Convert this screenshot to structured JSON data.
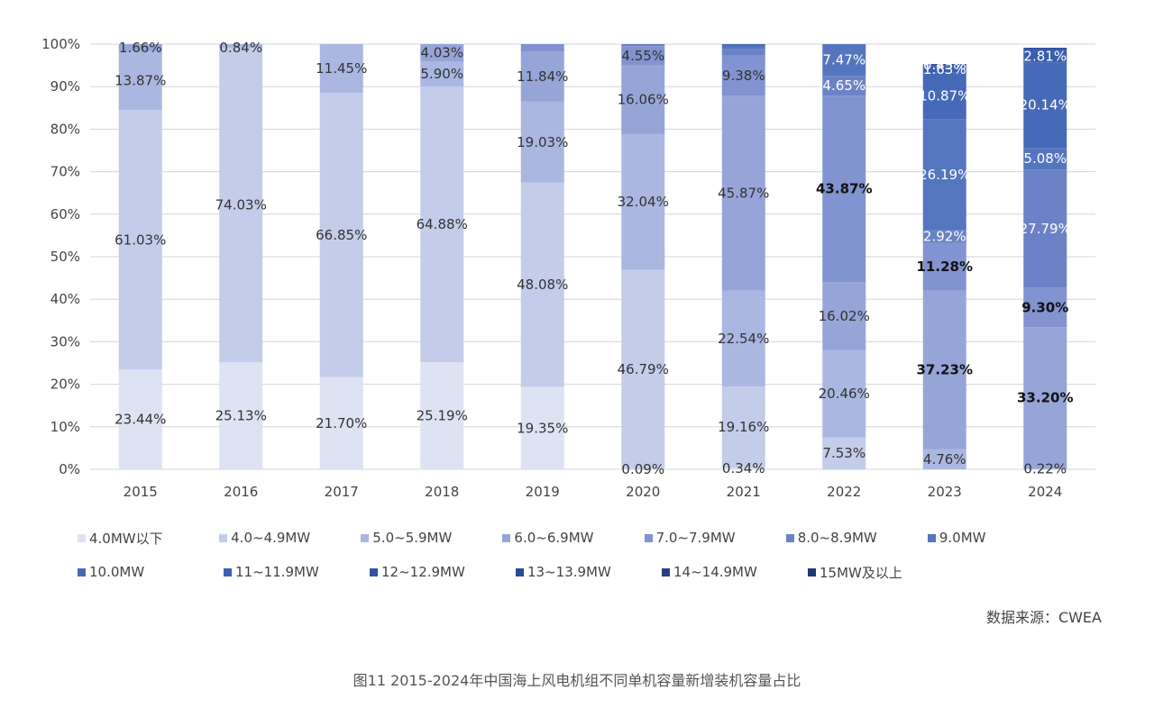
{
  "chart_data": {
    "type": "bar",
    "stacked": true,
    "categories": [
      "2015",
      "2016",
      "2017",
      "2018",
      "2019",
      "2020",
      "2021",
      "2022",
      "2023",
      "2024"
    ],
    "ylim": [
      0,
      100
    ],
    "yticks": [
      "0%",
      "10%",
      "20%",
      "30%",
      "40%",
      "50%",
      "60%",
      "70%",
      "80%",
      "90%",
      "100%"
    ],
    "grid": true,
    "legend_position": "bottom",
    "series": [
      {
        "name": "4.0MW以下",
        "color": "#dde3f3",
        "values": [
          23.44,
          25.13,
          21.7,
          25.19,
          19.35,
          0.09,
          0.34,
          0,
          0,
          0
        ],
        "labels": [
          "23.44%",
          "25.13%",
          "21.70%",
          "25.19%",
          "19.35%",
          "0.09%",
          "0.34%",
          "",
          "",
          ""
        ]
      },
      {
        "name": "4.0~4.9MW",
        "color": "#c3cdea",
        "values": [
          61.03,
          74.03,
          66.85,
          64.88,
          48.08,
          46.79,
          19.16,
          7.53,
          0,
          0
        ],
        "labels": [
          "61.03%",
          "74.03%",
          "66.85%",
          "64.88%",
          "48.08%",
          "46.79%",
          "19.16%",
          "7.53%",
          "",
          ""
        ]
      },
      {
        "name": "5.0~5.9MW",
        "color": "#aab7e0",
        "values": [
          13.87,
          0.84,
          11.45,
          5.9,
          19.03,
          32.04,
          22.54,
          20.46,
          4.76,
          0.22
        ],
        "labels": [
          "13.87%",
          "0.84%",
          "11.45%",
          "5.90%",
          "19.03%",
          "32.04%",
          "22.54%",
          "20.46%",
          "4.76%",
          "0.22%"
        ]
      },
      {
        "name": "6.0~6.9MW",
        "color": "#95a5d8",
        "values": [
          1.66,
          0,
          0,
          4.03,
          11.84,
          16.06,
          45.87,
          16.02,
          37.23,
          33.2
        ],
        "labels": [
          "1.66%",
          "",
          "",
          "4.03%",
          "11.84%",
          "16.06%",
          "45.87%",
          "16.02%",
          "37.23%",
          "33.20%"
        ]
      },
      {
        "name": "7.0~7.9MW",
        "color": "#8193d0",
        "values": [
          0,
          0,
          0,
          0,
          1.7,
          4.55,
          9.38,
          43.87,
          11.28,
          9.3
        ],
        "labels": [
          "",
          "",
          "",
          "",
          "",
          "4.55%",
          "9.38%",
          "43.87%",
          "11.28%",
          "9.30%"
        ]
      },
      {
        "name": "8.0~8.9MW",
        "color": "#6b83c6",
        "values": [
          0,
          0,
          0,
          0,
          0,
          0.47,
          1.5,
          4.65,
          2.92,
          27.79
        ],
        "labels": [
          "",
          "",
          "",
          "",
          "",
          "",
          "",
          "4.65%",
          "2.92%",
          "27.79%"
        ]
      },
      {
        "name": "9.0MW",
        "color": "#5575bf",
        "values": [
          0,
          0,
          0,
          0,
          0,
          0,
          0.7,
          7.47,
          26.19,
          5.08
        ],
        "labels": [
          "",
          "",
          "",
          "",
          "",
          "",
          "",
          "7.47%",
          "26.19%",
          "5.08%"
        ]
      },
      {
        "name": "10.0MW",
        "color": "#4669b8",
        "values": [
          0,
          0,
          0,
          0,
          0,
          0,
          0.5,
          0,
          10.87,
          20.14
        ],
        "labels": [
          "",
          "",
          "",
          "",
          "",
          "",
          "",
          "",
          "10.87%",
          "20.14%"
        ]
      },
      {
        "name": "11~11.9MW",
        "color": "#3b5fb0",
        "values": [
          0,
          0,
          0,
          0,
          0,
          0,
          0,
          0,
          1.63,
          2.81
        ],
        "labels": [
          "",
          "",
          "",
          "",
          "",
          "",
          "",
          "",
          "1.63%",
          "2.81%"
        ]
      },
      {
        "name": "12~12.9MW",
        "color": "#3354a3",
        "values": [
          0,
          0,
          0,
          0,
          0,
          0,
          0,
          0,
          0.45,
          0.62
        ],
        "labels": [
          "",
          "",
          "",
          "",
          "",
          "",
          "",
          "",
          "0.45%",
          ""
        ]
      },
      {
        "name": "13~13.9MW",
        "color": "#2b4a95",
        "values": [
          0,
          0,
          0,
          0,
          0,
          0,
          0,
          0,
          0,
          0
        ],
        "labels": [
          "",
          "",
          "",
          "",
          "",
          "",
          "",
          "",
          "",
          ""
        ]
      },
      {
        "name": "14~14.9MW",
        "color": "#253f85",
        "values": [
          0,
          0,
          0,
          0,
          0,
          0,
          0,
          0,
          0,
          0
        ],
        "labels": [
          "",
          "",
          "",
          "",
          "",
          "",
          "",
          "",
          "",
          ""
        ]
      },
      {
        "name": "15MW及以上",
        "color": "#1f3674",
        "values": [
          0,
          0,
          0,
          0,
          0,
          0,
          0,
          0,
          0,
          0
        ],
        "labels": [
          "",
          "",
          "",
          "",
          "",
          "",
          "",
          "",
          "",
          ""
        ]
      }
    ],
    "bold_labels": [
      "43.87%",
      "11.28%",
      "37.23%",
      "9.30%",
      "33.20%"
    ]
  },
  "source": "数据来源：CWEA",
  "caption": "图11  2015-2024年中国海上风电机组不同单机容量新增装机容量占比"
}
